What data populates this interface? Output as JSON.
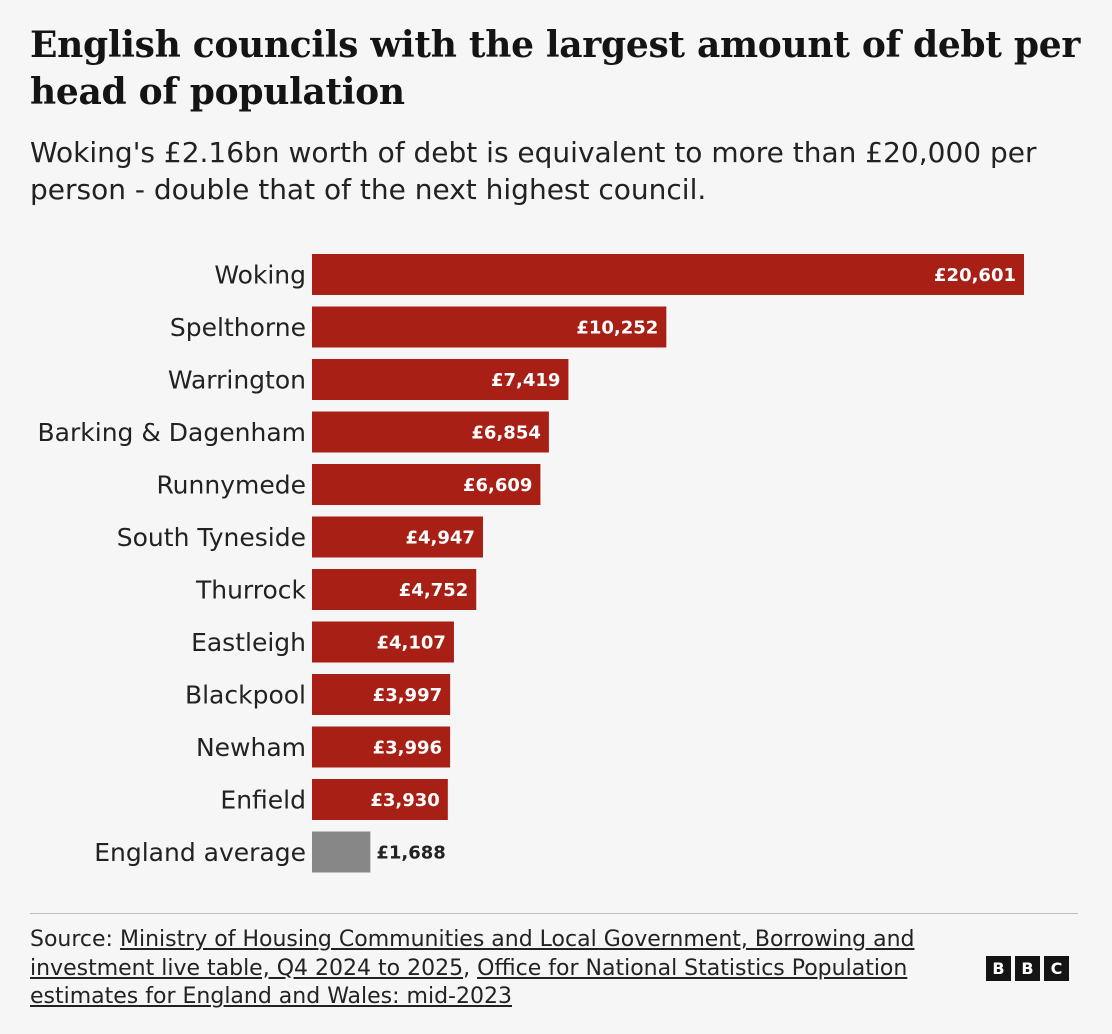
{
  "title": "English councils with the largest amount of debt per head of population",
  "subtitle": "Woking's £2.16bn worth of debt is equivalent to more than £20,000 per person - double that of the next highest council.",
  "chart_data": {
    "type": "bar",
    "orientation": "horizontal",
    "categories": [
      "Woking",
      "Spelthorne",
      "Warrington",
      "Barking & Dagenham",
      "Runnymede",
      "South Tyneside",
      "Thurrock",
      "Eastleigh",
      "Blackpool",
      "Newham",
      "Enfield",
      "England average"
    ],
    "values": [
      20601,
      10252,
      7419,
      6854,
      6609,
      4947,
      4752,
      4107,
      3997,
      3996,
      3930,
      1688
    ],
    "value_labels": [
      "£20,601",
      "£10,252",
      "£7,419",
      "£6,854",
      "£6,609",
      "£4,947",
      "£4,752",
      "£4,107",
      "£3,997",
      "£3,996",
      "£3,930",
      "£1,688"
    ],
    "bar_colors": [
      "#a81f15",
      "#a81f15",
      "#a81f15",
      "#a81f15",
      "#a81f15",
      "#a81f15",
      "#a81f15",
      "#a81f15",
      "#a81f15",
      "#a81f15",
      "#a81f15",
      "#878787"
    ],
    "xlim": [
      0,
      20601
    ],
    "grid": false,
    "legend": "none"
  },
  "source": {
    "prefix": "Source: ",
    "links": [
      "Ministry of Housing Communities and Local Government, Borrowing and investment live table, Q4 2024 to 2025",
      "Office for National Statistics Population estimates for England and Wales: mid-2023"
    ],
    "separator": ", "
  },
  "logo": {
    "letters": [
      "B",
      "B",
      "C"
    ]
  }
}
